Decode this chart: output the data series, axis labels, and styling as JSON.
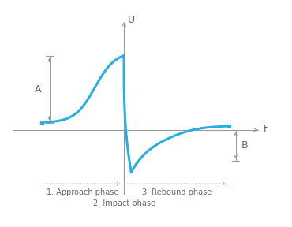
{
  "curve_color": "#29aee0",
  "axis_color": "#999999",
  "text_color": "#666666",
  "bg_color": "#ffffff",
  "xlabel": "t",
  "ylabel": "U",
  "phase1_label": "1. Approach phase",
  "phase2_label": "2. Impact phase",
  "phase3_label": "3. Rebound phase",
  "label_A": "A",
  "label_B": "B",
  "figsize": [
    3.7,
    2.88
  ],
  "dpi": 100,
  "curve_lw": 2.2,
  "axis_lw": 0.8,
  "annot_lw": 0.7,
  "phase_fontsize": 7,
  "label_fontsize": 9
}
